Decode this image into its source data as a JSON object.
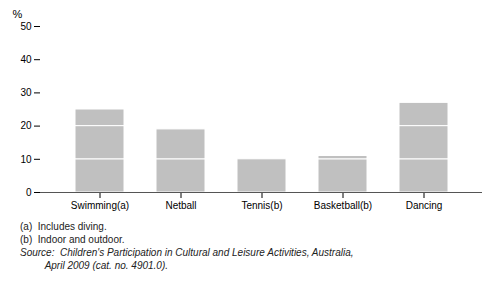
{
  "chart_data": {
    "type": "bar",
    "stacked": true,
    "grid": false,
    "ylabel": "%",
    "categories": [
      "Swimming(a)",
      "Netball",
      "Tennis(b)",
      "Basketball(b)",
      "Dancing"
    ],
    "series": [
      {
        "color": "#c0c0c0",
        "values": [
          10,
          10,
          10,
          10,
          10
        ]
      },
      {
        "color": "#c0c0c0",
        "values": [
          10,
          9,
          0,
          1,
          10
        ]
      },
      {
        "color": "#c0c0c0",
        "values": [
          5,
          0,
          0,
          0,
          7
        ]
      }
    ],
    "ylim": [
      0,
      50
    ],
    "yticks": [
      0,
      10,
      20,
      30,
      40,
      50
    ],
    "annotations": [
      "(a)  Includes diving.",
      "(b)  Indoor and outdoor.",
      "Source:  Children's Participation in Cultural and Leisure Activities, Australia,",
      "         April 2009 (cat. no. 4901.0)."
    ]
  }
}
